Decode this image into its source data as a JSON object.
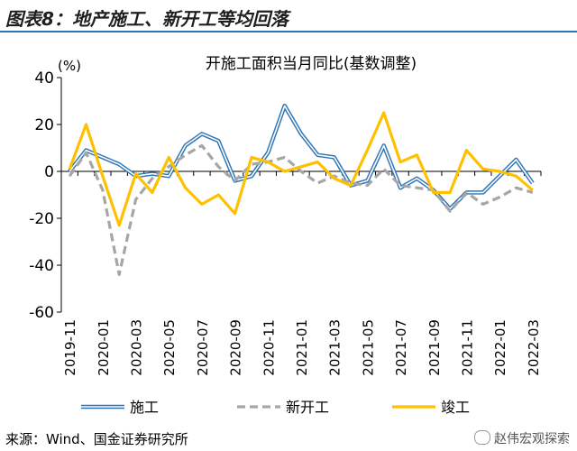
{
  "figure_title": "图表8：地产施工、新开工等均回落",
  "source_note": "来源：Wind、国金证券研究所",
  "watermark": "赵伟宏观探索",
  "colors": {
    "series_1": "#2e75b6",
    "series_2": "#a6a6a6",
    "series_3": "#ffc000",
    "header_rule": "#2e75b6"
  },
  "chart_data": {
    "type": "line",
    "title": "开施工面积当月同比(基数调整)",
    "ylabel": "(%)",
    "xlabel": "",
    "ylim": [
      -60,
      40
    ],
    "yticks": [
      -60,
      -40,
      -20,
      0,
      20,
      40
    ],
    "grid": false,
    "legend_position": "bottom",
    "x": [
      "2019-11",
      "2019-12",
      "2020-01",
      "2020-02",
      "2020-03",
      "2020-04",
      "2020-05",
      "2020-06",
      "2020-07",
      "2020-08",
      "2020-09",
      "2020-10",
      "2020-11",
      "2020-12",
      "2021-01",
      "2021-02",
      "2021-03",
      "2021-04",
      "2021-05",
      "2021-06",
      "2021-07",
      "2021-08",
      "2021-09",
      "2021-10",
      "2021-11",
      "2021-12",
      "2022-01",
      "2022-02",
      "2022-03"
    ],
    "xtick_labels": [
      "2019-11",
      "2020-01",
      "2020-03",
      "2020-05",
      "2020-07",
      "2020-09",
      "2020-11",
      "2021-01",
      "2021-03",
      "2021-05",
      "2021-07",
      "2021-09",
      "2021-11",
      "2022-01",
      "2022-03"
    ],
    "series": [
      {
        "name": "施工",
        "style": "double-blue",
        "values": [
          0,
          9,
          6,
          3,
          -2,
          -1,
          -2,
          11,
          16,
          13,
          -4,
          -2,
          8,
          28,
          16,
          7,
          6,
          -6,
          -4,
          11,
          -7,
          -3,
          -8,
          -16,
          -9,
          -9,
          -2,
          5,
          -5
        ]
      },
      {
        "name": "新开工",
        "style": "dashed-gray",
        "values": [
          -2,
          8,
          -8,
          -44,
          -12,
          -3,
          2,
          7,
          11,
          2,
          -4,
          3,
          4,
          6,
          0,
          -5,
          -2,
          -5,
          -6,
          1,
          -6,
          -7,
          -8,
          -17,
          -9,
          -14,
          -11,
          -7,
          -9
        ]
      },
      {
        "name": "竣工",
        "style": "solid-yellow",
        "values": [
          1,
          20,
          -2,
          -23,
          -1,
          -9,
          6,
          -7,
          -14,
          -10,
          -18,
          6,
          4,
          0,
          2,
          4,
          -3,
          -6,
          9,
          25,
          4,
          7,
          -9,
          -9,
          9,
          1,
          0,
          -2,
          -8
        ]
      }
    ]
  }
}
